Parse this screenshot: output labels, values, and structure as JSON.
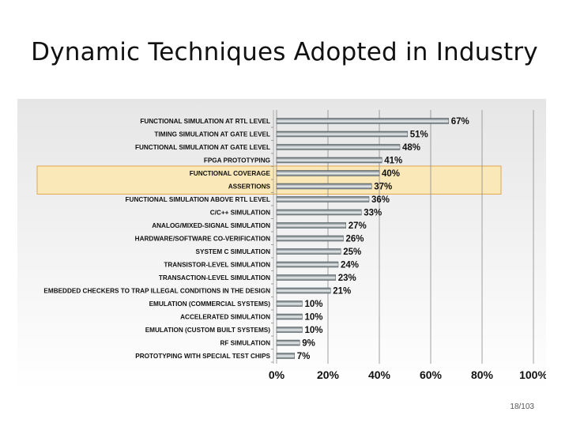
{
  "slide": {
    "title": "Dynamic Techniques Adopted in Industry",
    "page_number": "18/103"
  },
  "colors": {
    "bar_dark": "#5f6a6f",
    "bar_light": "#eef1f2",
    "highlight_fill": "#fbe8b8",
    "highlight_stroke": "#e0a94a",
    "grid": "#8a8a8a",
    "label": "#111111"
  },
  "chart_data": {
    "type": "bar",
    "orientation": "horizontal",
    "title": "",
    "xlabel": "",
    "ylabel": "",
    "xlim": [
      0,
      100
    ],
    "x_ticks": [
      "0%",
      "20%",
      "40%",
      "60%",
      "80%",
      "100%"
    ],
    "grid": true,
    "categories": [
      "FUNCTIONAL SIMULATION AT RTL LEVEL",
      "TIMING SIMULATION AT GATE LEVEL",
      "FUNCTIONAL SIMULATION AT GATE LEVEL",
      "FPGA PROTOTYPING",
      "FUNCTIONAL COVERAGE",
      "ASSERTIONS",
      "FUNCTIONAL SIMULATION ABOVE RTL LEVEL",
      "C/C++ SIMULATION",
      "ANALOG/MIXED-SIGNAL SIMULATION",
      "HARDWARE/SOFTWARE CO-VERIFICATION",
      "SYSTEM C SIMULATION",
      "TRANSISTOR-LEVEL SIMULATION",
      "TRANSACTION-LEVEL SIMULATION",
      "EMBEDDED CHECKERS TO TRAP ILLEGAL CONDITIONS IN THE DESIGN",
      "EMULATION (COMMERCIAL SYSTEMS)",
      "ACCELERATED SIMULATION",
      "EMULATION (CUSTOM BUILT SYSTEMS)",
      "RF SIMULATION",
      "PROTOTYPING WITH SPECIAL TEST CHIPS"
    ],
    "values": [
      67,
      51,
      48,
      41,
      40,
      37,
      36,
      33,
      27,
      26,
      25,
      24,
      23,
      21,
      10,
      10,
      10,
      9,
      7
    ],
    "value_labels": [
      "67%",
      "51%",
      "48%",
      "41%",
      "40%",
      "37%",
      "36%",
      "33%",
      "27%",
      "26%",
      "25%",
      "24%",
      "23%",
      "21%",
      "10%",
      "10%",
      "10%",
      "9%",
      "7%"
    ],
    "highlighted_categories": [
      "FUNCTIONAL COVERAGE",
      "ASSERTIONS"
    ]
  }
}
